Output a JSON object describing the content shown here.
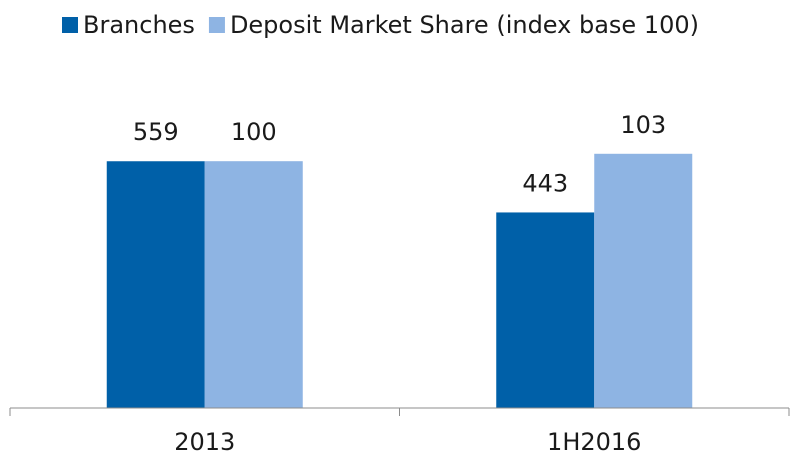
{
  "chart_data": {
    "type": "bar",
    "categories": [
      "2013",
      "1H2016"
    ],
    "series": [
      {
        "name": "Branches",
        "color": "#0060a8",
        "values": [
          559,
          443
        ]
      },
      {
        "name": "Deposit Market Share (index base 100)",
        "color": "#8eb4e3",
        "values": [
          100,
          103
        ],
        "axis": "y2"
      }
    ],
    "ylim": [
      0,
      700
    ],
    "y2lim": [
      0,
      125.2
    ],
    "legend": "top"
  }
}
